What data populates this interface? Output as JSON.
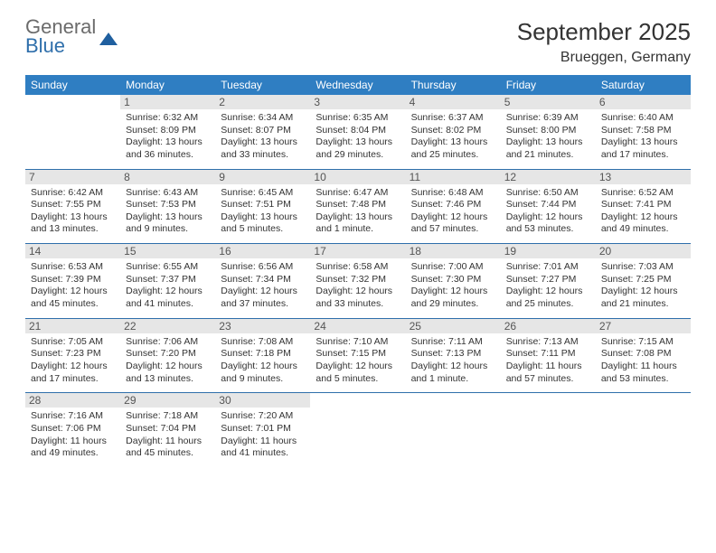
{
  "brand": {
    "g": "General",
    "b": "Blue"
  },
  "title": "September 2025",
  "location": "Brueggen, Germany",
  "dow": [
    "Sunday",
    "Monday",
    "Tuesday",
    "Wednesday",
    "Thursday",
    "Friday",
    "Saturday"
  ],
  "colors": {
    "header_bg": "#2f7ec2",
    "rule": "#2f6fab",
    "daynum_bg": "#e6e6e6"
  },
  "weeks": [
    [
      null,
      {
        "n": "1",
        "sr": "Sunrise: 6:32 AM",
        "ss": "Sunset: 8:09 PM",
        "d1": "Daylight: 13 hours",
        "d2": "and 36 minutes."
      },
      {
        "n": "2",
        "sr": "Sunrise: 6:34 AM",
        "ss": "Sunset: 8:07 PM",
        "d1": "Daylight: 13 hours",
        "d2": "and 33 minutes."
      },
      {
        "n": "3",
        "sr": "Sunrise: 6:35 AM",
        "ss": "Sunset: 8:04 PM",
        "d1": "Daylight: 13 hours",
        "d2": "and 29 minutes."
      },
      {
        "n": "4",
        "sr": "Sunrise: 6:37 AM",
        "ss": "Sunset: 8:02 PM",
        "d1": "Daylight: 13 hours",
        "d2": "and 25 minutes."
      },
      {
        "n": "5",
        "sr": "Sunrise: 6:39 AM",
        "ss": "Sunset: 8:00 PM",
        "d1": "Daylight: 13 hours",
        "d2": "and 21 minutes."
      },
      {
        "n": "6",
        "sr": "Sunrise: 6:40 AM",
        "ss": "Sunset: 7:58 PM",
        "d1": "Daylight: 13 hours",
        "d2": "and 17 minutes."
      }
    ],
    [
      {
        "n": "7",
        "sr": "Sunrise: 6:42 AM",
        "ss": "Sunset: 7:55 PM",
        "d1": "Daylight: 13 hours",
        "d2": "and 13 minutes."
      },
      {
        "n": "8",
        "sr": "Sunrise: 6:43 AM",
        "ss": "Sunset: 7:53 PM",
        "d1": "Daylight: 13 hours",
        "d2": "and 9 minutes."
      },
      {
        "n": "9",
        "sr": "Sunrise: 6:45 AM",
        "ss": "Sunset: 7:51 PM",
        "d1": "Daylight: 13 hours",
        "d2": "and 5 minutes."
      },
      {
        "n": "10",
        "sr": "Sunrise: 6:47 AM",
        "ss": "Sunset: 7:48 PM",
        "d1": "Daylight: 13 hours",
        "d2": "and 1 minute."
      },
      {
        "n": "11",
        "sr": "Sunrise: 6:48 AM",
        "ss": "Sunset: 7:46 PM",
        "d1": "Daylight: 12 hours",
        "d2": "and 57 minutes."
      },
      {
        "n": "12",
        "sr": "Sunrise: 6:50 AM",
        "ss": "Sunset: 7:44 PM",
        "d1": "Daylight: 12 hours",
        "d2": "and 53 minutes."
      },
      {
        "n": "13",
        "sr": "Sunrise: 6:52 AM",
        "ss": "Sunset: 7:41 PM",
        "d1": "Daylight: 12 hours",
        "d2": "and 49 minutes."
      }
    ],
    [
      {
        "n": "14",
        "sr": "Sunrise: 6:53 AM",
        "ss": "Sunset: 7:39 PM",
        "d1": "Daylight: 12 hours",
        "d2": "and 45 minutes."
      },
      {
        "n": "15",
        "sr": "Sunrise: 6:55 AM",
        "ss": "Sunset: 7:37 PM",
        "d1": "Daylight: 12 hours",
        "d2": "and 41 minutes."
      },
      {
        "n": "16",
        "sr": "Sunrise: 6:56 AM",
        "ss": "Sunset: 7:34 PM",
        "d1": "Daylight: 12 hours",
        "d2": "and 37 minutes."
      },
      {
        "n": "17",
        "sr": "Sunrise: 6:58 AM",
        "ss": "Sunset: 7:32 PM",
        "d1": "Daylight: 12 hours",
        "d2": "and 33 minutes."
      },
      {
        "n": "18",
        "sr": "Sunrise: 7:00 AM",
        "ss": "Sunset: 7:30 PM",
        "d1": "Daylight: 12 hours",
        "d2": "and 29 minutes."
      },
      {
        "n": "19",
        "sr": "Sunrise: 7:01 AM",
        "ss": "Sunset: 7:27 PM",
        "d1": "Daylight: 12 hours",
        "d2": "and 25 minutes."
      },
      {
        "n": "20",
        "sr": "Sunrise: 7:03 AM",
        "ss": "Sunset: 7:25 PM",
        "d1": "Daylight: 12 hours",
        "d2": "and 21 minutes."
      }
    ],
    [
      {
        "n": "21",
        "sr": "Sunrise: 7:05 AM",
        "ss": "Sunset: 7:23 PM",
        "d1": "Daylight: 12 hours",
        "d2": "and 17 minutes."
      },
      {
        "n": "22",
        "sr": "Sunrise: 7:06 AM",
        "ss": "Sunset: 7:20 PM",
        "d1": "Daylight: 12 hours",
        "d2": "and 13 minutes."
      },
      {
        "n": "23",
        "sr": "Sunrise: 7:08 AM",
        "ss": "Sunset: 7:18 PM",
        "d1": "Daylight: 12 hours",
        "d2": "and 9 minutes."
      },
      {
        "n": "24",
        "sr": "Sunrise: 7:10 AM",
        "ss": "Sunset: 7:15 PM",
        "d1": "Daylight: 12 hours",
        "d2": "and 5 minutes."
      },
      {
        "n": "25",
        "sr": "Sunrise: 7:11 AM",
        "ss": "Sunset: 7:13 PM",
        "d1": "Daylight: 12 hours",
        "d2": "and 1 minute."
      },
      {
        "n": "26",
        "sr": "Sunrise: 7:13 AM",
        "ss": "Sunset: 7:11 PM",
        "d1": "Daylight: 11 hours",
        "d2": "and 57 minutes."
      },
      {
        "n": "27",
        "sr": "Sunrise: 7:15 AM",
        "ss": "Sunset: 7:08 PM",
        "d1": "Daylight: 11 hours",
        "d2": "and 53 minutes."
      }
    ],
    [
      {
        "n": "28",
        "sr": "Sunrise: 7:16 AM",
        "ss": "Sunset: 7:06 PM",
        "d1": "Daylight: 11 hours",
        "d2": "and 49 minutes."
      },
      {
        "n": "29",
        "sr": "Sunrise: 7:18 AM",
        "ss": "Sunset: 7:04 PM",
        "d1": "Daylight: 11 hours",
        "d2": "and 45 minutes."
      },
      {
        "n": "30",
        "sr": "Sunrise: 7:20 AM",
        "ss": "Sunset: 7:01 PM",
        "d1": "Daylight: 11 hours",
        "d2": "and 41 minutes."
      },
      null,
      null,
      null,
      null
    ]
  ]
}
